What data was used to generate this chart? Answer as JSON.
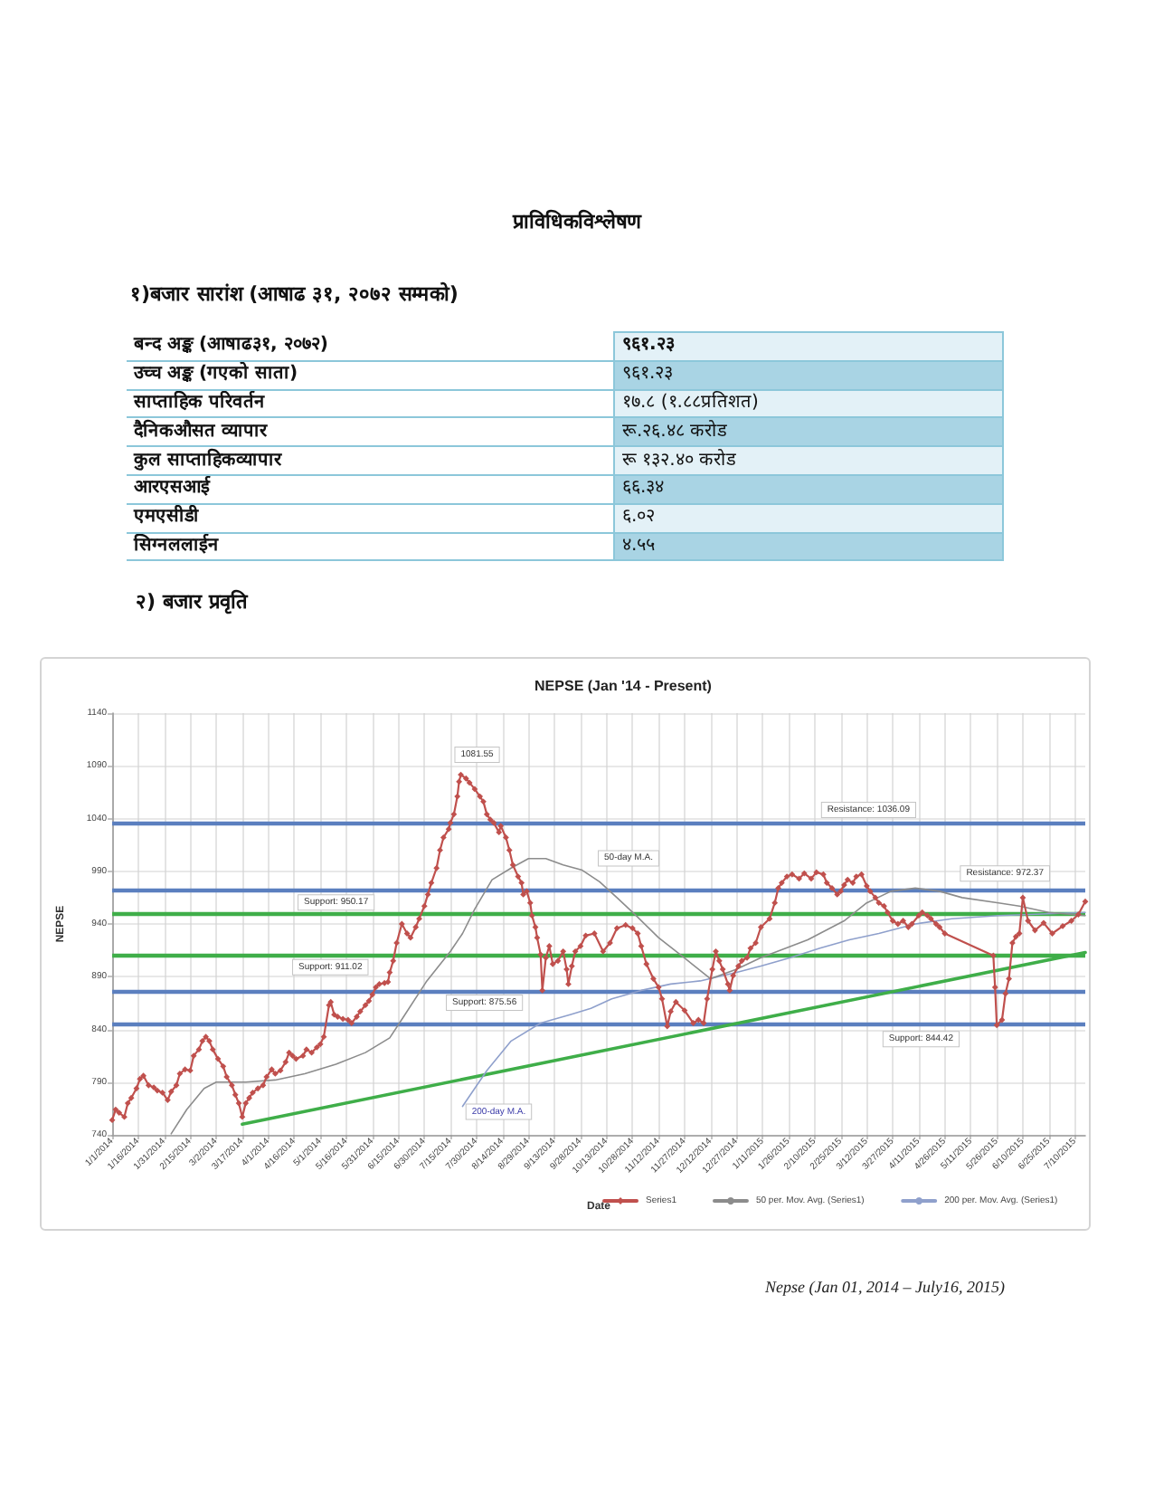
{
  "chart_data": [
    {
      "type": "other",
      "title": "प्राविधिकविश्लेषण",
      "subtitle": "१)बजार सारांश (आषाढ ३१, २०७२ सम्मको)",
      "annotations": [
        "बन्द अङ्क (आषाढ३१, २०७२)",
        "९६१.२३",
        "उच्च अङ्क (गएको साता)",
        "९६१.२३",
        "साप्ताहिक परिवर्तन",
        "१७.८ (१.८८प्रतिशत)",
        "दैनिकऔसत व्यापार",
        "रू.२६.४८ करोड",
        "कुल साप्ताहिकव्यापार",
        "रू १३२.४० करोड",
        "आरएसआई",
        "६६.३४",
        "एमएसीडी",
        "६.०२",
        "सिग्नललाईन",
        "४.५५"
      ]
    },
    {
      "type": "line",
      "title": "NEPSE (Jan '14 - Present)",
      "xlabel": "Date",
      "ylabel": "NEPSE",
      "annotations": [
        "२) बजार प्रवृति",
        "Nepse (Jan 01, 2014 – July16, 2015)",
        {
          "text": "1081.55",
          "x": "2014-07-21",
          "y": 1081.55
        },
        {
          "text": "50-day M.A.",
          "x": "2014-10-09",
          "y": 980
        },
        {
          "text": "200-day M.A.",
          "x": "2014-07-22",
          "y": 767
        }
      ],
      "xlim": [
        "2014-01-01",
        "2015-07-16"
      ],
      "xticks": [
        {
          "value": "2014-01-01",
          "label": "1/1/2014"
        },
        {
          "value": "2014-01-16",
          "label": "1/16/2014"
        },
        {
          "value": "2014-01-31",
          "label": "1/31/2014"
        },
        {
          "value": "2014-02-15",
          "label": "2/15/2014"
        },
        {
          "value": "2014-03-02",
          "label": "3/2/2014"
        },
        {
          "value": "2014-03-17",
          "label": "3/17/2014"
        },
        {
          "value": "2014-04-01",
          "label": "4/1/2014"
        },
        {
          "value": "2014-04-16",
          "label": "4/16/2014"
        },
        {
          "value": "2014-05-01",
          "label": "5/1/2014"
        },
        {
          "value": "2014-05-16",
          "label": "5/16/2014"
        },
        {
          "value": "2014-05-31",
          "label": "5/31/2014"
        },
        {
          "value": "2014-06-15",
          "label": "6/15/2014"
        },
        {
          "value": "2014-06-30",
          "label": "6/30/2014"
        },
        {
          "value": "2014-07-15",
          "label": "7/15/2014"
        },
        {
          "value": "2014-07-30",
          "label": "7/30/2014"
        },
        {
          "value": "2014-08-14",
          "label": "8/14/2014"
        },
        {
          "value": "2014-08-29",
          "label": "8/29/2014"
        },
        {
          "value": "2014-09-13",
          "label": "9/13/2014"
        },
        {
          "value": "2014-09-28",
          "label": "9/28/2014"
        },
        {
          "value": "2014-10-13",
          "label": "10/13/2014"
        },
        {
          "value": "2014-10-28",
          "label": "10/28/2014"
        },
        {
          "value": "2014-11-12",
          "label": "11/12/2014"
        },
        {
          "value": "2014-11-27",
          "label": "11/27/2014"
        },
        {
          "value": "2014-12-12",
          "label": "12/12/2014"
        },
        {
          "value": "2014-12-27",
          "label": "12/27/2014"
        },
        {
          "value": "2015-01-11",
          "label": "1/11/2015"
        },
        {
          "value": "2015-01-26",
          "label": "1/26/2015"
        },
        {
          "value": "2015-02-10",
          "label": "2/10/2015"
        },
        {
          "value": "2015-02-25",
          "label": "2/25/2015"
        },
        {
          "value": "2015-03-12",
          "label": "3/12/2015"
        },
        {
          "value": "2015-03-27",
          "label": "3/27/2015"
        },
        {
          "value": "2015-04-11",
          "label": "4/11/2015"
        },
        {
          "value": "2015-04-26",
          "label": "4/26/2015"
        },
        {
          "value": "2015-05-11",
          "label": "5/11/2015"
        },
        {
          "value": "2015-05-26",
          "label": "5/26/2015"
        },
        {
          "value": "2015-06-10",
          "label": "6/10/2015"
        },
        {
          "value": "2015-06-25",
          "label": "6/25/2015"
        },
        {
          "value": "2015-07-10",
          "label": "7/10/2015"
        }
      ],
      "ylim": [
        740,
        1140
      ],
      "yticks": [
        740,
        790,
        840,
        890,
        940,
        990,
        1040,
        1090,
        1140
      ],
      "grid": true,
      "legend": "bottom right",
      "marker": "diamond",
      "ref_lines": [
        {
          "axis": "y",
          "value": 1036.09,
          "label": "Resistance: 1036.09",
          "color": "#5b7fbf"
        },
        {
          "axis": "y",
          "value": 972.37,
          "label": "Resistance: 972.37",
          "color": "#5b7fbf"
        },
        {
          "axis": "y",
          "value": 950.17,
          "label": "Support: 950.17",
          "color": "#3fae49"
        },
        {
          "axis": "y",
          "value": 911.02,
          "label": "Support: 911.02",
          "color": "#3fae49"
        },
        {
          "axis": "y",
          "value": 875.56,
          "label": "Support: 875.56",
          "color": "#5b7fbf"
        },
        {
          "axis": "y",
          "value": 844.42,
          "label": "Support: 844.42",
          "color": "#5b7fbf"
        }
      ],
      "series": [
        {
          "name": "Series1",
          "color": "#c0504d",
          "x": [
            "2014-01-01",
            "2014-01-03",
            "2014-01-05",
            "2014-01-08",
            "2014-01-10",
            "2014-01-12",
            "2014-01-15",
            "2014-01-17",
            "2014-01-19",
            "2014-01-22",
            "2014-01-25",
            "2014-01-27",
            "2014-01-30",
            "2014-02-02",
            "2014-02-04",
            "2014-02-07",
            "2014-02-09",
            "2014-02-12",
            "2014-02-15",
            "2014-02-17",
            "2014-02-20",
            "2014-02-22",
            "2014-02-24",
            "2014-02-26",
            "2014-02-28",
            "2014-03-03",
            "2014-03-06",
            "2014-03-08",
            "2014-03-11",
            "2014-03-13",
            "2014-03-15",
            "2014-03-17",
            "2014-03-19",
            "2014-03-21",
            "2014-03-23",
            "2014-03-26",
            "2014-03-29",
            "2014-03-31",
            "2014-04-03",
            "2014-04-05",
            "2014-04-08",
            "2014-04-11",
            "2014-04-13",
            "2014-04-15",
            "2014-04-17",
            "2014-04-21",
            "2014-04-23",
            "2014-04-26",
            "2014-04-29",
            "2014-05-01",
            "2014-05-03",
            "2014-05-06",
            "2014-05-07",
            "2014-05-09",
            "2014-05-11",
            "2014-05-14",
            "2014-05-17",
            "2014-05-19",
            "2014-05-22",
            "2014-05-24",
            "2014-05-27",
            "2014-05-29",
            "2014-05-31",
            "2014-06-02",
            "2014-06-04",
            "2014-06-07",
            "2014-06-09",
            "2014-06-10",
            "2014-06-12",
            "2014-06-14",
            "2014-06-17",
            "2014-06-20",
            "2014-06-22",
            "2014-06-25",
            "2014-06-27",
            "2014-06-30",
            "2014-07-02",
            "2014-07-04",
            "2014-07-07",
            "2014-07-09",
            "2014-07-11",
            "2014-07-14",
            "2014-07-15",
            "2014-07-17",
            "2014-07-19",
            "2014-07-20",
            "2014-07-21",
            "2014-07-24",
            "2014-07-26",
            "2014-07-29",
            "2014-08-01",
            "2014-08-03",
            "2014-08-05",
            "2014-08-07",
            "2014-08-09",
            "2014-08-12",
            "2014-08-13",
            "2014-08-16",
            "2014-08-18",
            "2014-08-20",
            "2014-08-23",
            "2014-08-25",
            "2014-08-26",
            "2014-08-28",
            "2014-08-30",
            "2014-08-31",
            "2014-09-02",
            "2014-09-03",
            "2014-09-05",
            "2014-09-06",
            "2014-09-08",
            "2014-09-10",
            "2014-09-12",
            "2014-09-15",
            "2014-09-18",
            "2014-09-20",
            "2014-09-21",
            "2014-09-23",
            "2014-09-25",
            "2014-09-28",
            "2014-10-01",
            "2014-10-06",
            "2014-10-11",
            "2014-10-15",
            "2014-10-19",
            "2014-10-24",
            "2014-10-28",
            "2014-10-31",
            "2014-11-02",
            "2014-11-05",
            "2014-11-09",
            "2014-11-12",
            "2014-11-14",
            "2014-11-17",
            "2014-11-19",
            "2014-11-22",
            "2014-11-27",
            "2014-12-02",
            "2014-12-05",
            "2014-12-08",
            "2014-12-10",
            "2014-12-13",
            "2014-12-15",
            "2014-12-17",
            "2014-12-19",
            "2014-12-22",
            "2014-12-23",
            "2014-12-25",
            "2014-12-28",
            "2014-12-30",
            "2015-01-02",
            "2015-01-04",
            "2015-01-07",
            "2015-01-10",
            "2015-01-15",
            "2015-01-18",
            "2015-01-20",
            "2015-01-22",
            "2015-01-25",
            "2015-01-28",
            "2015-02-01",
            "2015-02-04",
            "2015-02-08",
            "2015-02-11",
            "2015-02-15",
            "2015-02-17",
            "2015-02-20",
            "2015-02-23",
            "2015-02-25",
            "2015-02-27",
            "2015-03-01",
            "2015-03-04",
            "2015-03-06",
            "2015-03-09",
            "2015-03-12",
            "2015-03-14",
            "2015-03-17",
            "2015-03-19",
            "2015-03-22",
            "2015-03-24",
            "2015-03-27",
            "2015-03-30",
            "2015-04-02",
            "2015-04-05",
            "2015-04-07",
            "2015-04-11",
            "2015-04-13",
            "2015-04-16",
            "2015-04-18",
            "2015-04-21",
            "2015-04-23",
            "2015-04-26",
            "2015-05-24",
            "2015-05-25",
            "2015-05-26",
            "2015-05-29",
            "2015-05-31",
            "2015-06-02",
            "2015-06-04",
            "2015-06-06",
            "2015-06-08",
            "2015-06-10",
            "2015-06-13",
            "2015-06-17",
            "2015-06-22",
            "2015-06-27",
            "2015-07-03",
            "2015-07-08",
            "2015-07-12",
            "2015-07-16"
          ],
          "values": [
            754,
            764,
            761,
            757,
            770,
            775,
            784,
            793,
            796,
            787,
            785,
            782,
            780,
            773,
            781,
            787,
            798,
            802,
            801,
            815,
            821,
            829,
            833,
            829,
            821,
            812,
            805,
            795,
            787,
            778,
            770,
            757,
            770,
            775,
            780,
            784,
            787,
            795,
            802,
            798,
            801,
            809,
            818,
            815,
            812,
            815,
            821,
            818,
            823,
            826,
            833,
            863,
            866,
            854,
            852,
            850,
            849,
            846,
            852,
            857,
            863,
            867,
            873,
            880,
            883,
            884,
            885,
            894,
            905,
            922,
            940,
            931,
            927,
            937,
            945,
            957,
            968,
            979,
            993,
            1010,
            1022,
            1030,
            1036,
            1044,
            1061,
            1075,
            1081.55,
            1078,
            1074,
            1068,
            1061,
            1056,
            1044,
            1039,
            1036,
            1027,
            1033,
            1022,
            1010,
            996,
            985,
            979,
            968,
            971,
            960,
            948,
            937,
            927,
            911,
            877,
            908,
            919,
            902,
            905,
            914,
            897,
            883,
            900,
            914,
            919,
            929,
            931,
            914,
            922,
            936,
            939,
            936,
            931,
            919,
            902,
            888,
            880,
            869,
            843,
            857,
            866,
            858,
            846,
            849,
            846,
            869,
            897,
            914,
            905,
            897,
            883,
            877,
            891,
            900,
            905,
            908,
            917,
            922,
            937,
            945,
            960,
            974,
            979,
            985,
            987,
            983,
            988,
            983,
            989,
            987,
            979,
            974,
            968,
            971,
            977,
            982,
            979,
            985,
            987,
            976,
            971,
            965,
            960,
            957,
            951,
            943,
            940,
            943,
            937,
            940,
            948,
            951,
            948,
            945,
            940,
            937,
            931,
            910,
            880,
            844,
            849,
            874,
            888,
            922,
            928,
            931,
            965,
            943,
            934,
            941,
            931,
            938,
            943,
            949,
            961.23
          ]
        },
        {
          "name": "50 per. Mov. Avg. (Series1)",
          "color": "#8c8c8c",
          "marker": "none",
          "x": [
            "2014-02-04",
            "2014-02-13",
            "2014-02-23",
            "2014-03-02",
            "2014-03-19",
            "2014-04-05",
            "2014-04-22",
            "2014-05-10",
            "2014-05-27",
            "2014-06-10",
            "2014-06-18",
            "2014-07-01",
            "2014-07-15",
            "2014-07-22",
            "2014-07-29",
            "2014-08-08",
            "2014-08-19",
            "2014-08-29",
            "2014-09-08",
            "2014-09-18",
            "2014-09-29",
            "2014-10-09",
            "2014-10-19",
            "2014-10-30",
            "2014-11-12",
            "2014-11-26",
            "2014-12-12",
            "2014-12-27",
            "2015-01-10",
            "2015-02-06",
            "2015-02-27",
            "2015-03-12",
            "2015-03-26",
            "2015-04-09",
            "2015-04-23",
            "2015-05-06",
            "2015-05-27",
            "2015-06-08",
            "2015-06-25",
            "2015-07-16"
          ],
          "values": [
            741,
            764,
            784,
            790,
            790,
            792,
            798,
            807,
            818,
            832,
            852,
            885,
            914,
            931,
            954,
            982,
            993,
            1002,
            1002,
            996,
            991,
            980,
            965,
            948,
            927,
            909,
            888,
            897,
            908,
            925,
            943,
            960,
            971,
            974,
            971,
            965,
            960,
            957,
            951,
            948
          ]
        },
        {
          "name": "200 per. Mov. Avg. (Series1)",
          "color": "#8fa0cc",
          "marker": "none",
          "x": [
            "2014-07-22",
            "2014-08-05",
            "2014-08-19",
            "2014-09-05",
            "2014-09-22",
            "2014-10-04",
            "2014-10-16",
            "2014-11-02",
            "2014-11-19",
            "2014-12-06",
            "2014-12-27",
            "2015-01-10",
            "2015-01-27",
            "2015-02-13",
            "2015-03-02",
            "2015-03-19",
            "2015-04-09",
            "2015-04-30",
            "2015-05-27",
            "2015-07-16"
          ],
          "values": [
            767,
            801,
            829,
            846,
            854,
            860,
            869,
            877,
            883,
            886,
            894,
            900,
            908,
            917,
            925,
            931,
            940,
            945,
            948,
            951
          ]
        },
        {
          "color": "#3fae49",
          "marker": "none",
          "x": [
            "2014-03-17",
            "2015-07-16"
          ],
          "values": [
            750,
            913
          ]
        }
      ]
    }
  ]
}
